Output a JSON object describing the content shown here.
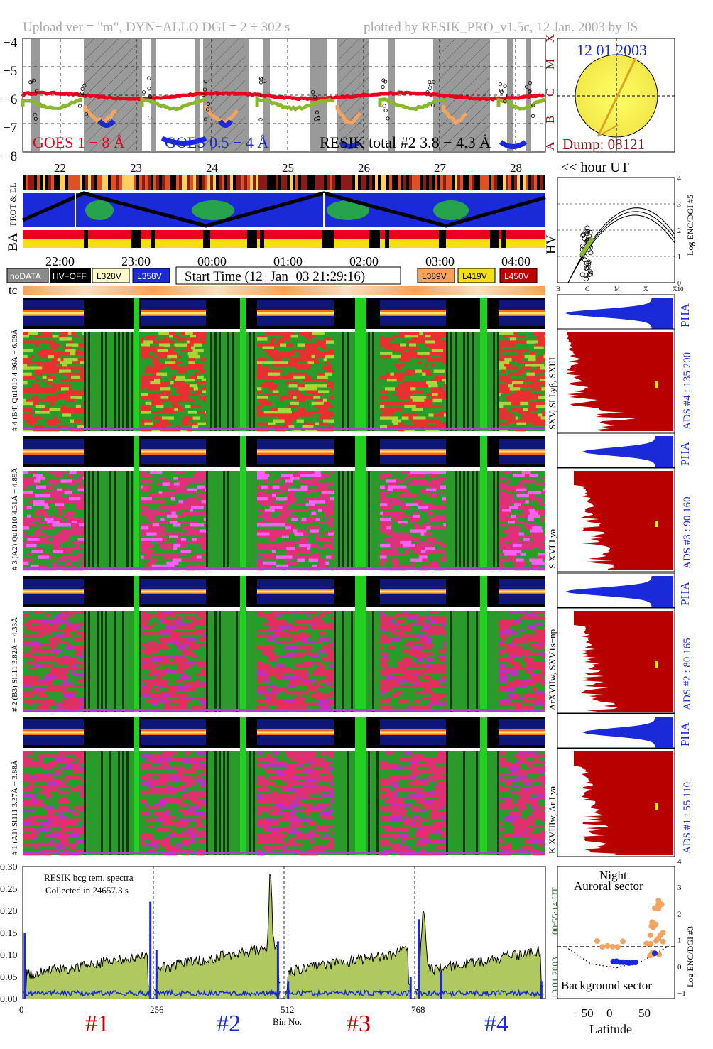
{
  "header": {
    "left": "Upload ver = \"m\", DYN−ALLO DGI =   2 ÷ 302 s",
    "right": "plotted by RESIK_PRO_v1.5c, 12 Jan. 2003 by JS"
  },
  "goes": {
    "ytick_labels": [
      "−4",
      "−5",
      "−6",
      "−7",
      "−8"
    ],
    "class_labels": [
      "X",
      "M",
      "C",
      "B",
      "A"
    ],
    "legend_goes1": "GOES 1 − 8 Å",
    "legend_goes05": "GOES 0.5 − 4 Å",
    "legend_resik": "RESIK total #2  3.8 − 4.3 Å",
    "orbit_numbers": [
      "22",
      "23",
      "24",
      "25",
      "26",
      "27",
      "28"
    ],
    "colors": {
      "goes1": "#e8001c",
      "goes05": "#1a2ad8",
      "resik_curve": "#8ab82c",
      "orange": "#f4a460"
    }
  },
  "sun_panel": {
    "date": "12 01 2003",
    "dump": "Dump: 08121",
    "hour_label": "<< hour UT"
  },
  "side_labels": {
    "prot_el": "PROT & EL",
    "ba": "BA",
    "hv": "HV"
  },
  "time_axis": {
    "ticks": [
      "22:00",
      "23:00",
      "00:00",
      "01:00",
      "02:00",
      "03:00",
      "04:00"
    ]
  },
  "legend_boxes": {
    "nodata": "noDATA",
    "hvoff": "HV−OFF",
    "l328": "L328V",
    "l358": "L358V",
    "start_time": "Start Time (12−Jan−03 21:29:16)",
    "l389": "L389V",
    "l419": "L419V",
    "l450": "L450V"
  },
  "tc_label": "tc",
  "channels": [
    {
      "label": "# 4 (B4) Qu1010 4.96Å − 6.09Å",
      "right_label": "SXV, SI Lyβ, SXIII",
      "ads": "ADS #4 :  135 200",
      "pha": "PHA"
    },
    {
      "label": "# 3 (A2) Qu1010 4.31Å − 4.89Å",
      "right_label": "S XVI Lya",
      "ads": "ADS #3 :   90 160",
      "pha": "PHA"
    },
    {
      "label": "# 2 (B3) Si111 3.82Å − 4.33Å",
      "right_label": "ArXVIIw, SXV1s−np",
      "ads": "ADS #2 :   80 165",
      "pha": "PHA"
    },
    {
      "label": "# 1 (A1) Si111 3.37Å − 3.88Å",
      "right_label": "K XVIIIw, Ar Lya",
      "ads": "ADS #1 :   55 110",
      "pha": "PHA"
    }
  ],
  "hv_panel": {
    "ytick_labels": [
      "0",
      "1",
      "2",
      "3",
      "4"
    ],
    "xtick_labels": [
      "B",
      "C",
      "M",
      "X",
      "X10"
    ],
    "ylabel": "Log ENC/DGI #5"
  },
  "bottom_spectrum": {
    "info_line1": "RESIK bcg tem. spectra",
    "info_line2": "Collected in 24657.3 s",
    "ytick_labels": [
      "0.00",
      "0.05",
      "0.10",
      "0.15",
      "0.20",
      "0.25",
      "0.30"
    ],
    "xtick_labels": [
      "0",
      "256",
      "512",
      "768"
    ],
    "xlabel": "Bin No.",
    "right_time": "00:55:14 UT",
    "right_date": "13 01 2003",
    "section_labels": [
      "#1",
      "#2",
      "#3",
      "#4"
    ]
  },
  "lat_panel": {
    "title1": "Night",
    "title2": "Auroral sector",
    "bottom_label": "Background sector",
    "xtick_labels": [
      "−50",
      "0",
      "50"
    ],
    "xlabel": "Latitude",
    "ytick_labels": [
      "−1",
      "0",
      "1",
      "2",
      "3",
      "4"
    ],
    "ylabel": "Log ENC/DGI #3"
  },
  "chart_data": [
    {
      "type": "line",
      "title": "",
      "series": [
        {
          "name": "GOES 1 − 8 Å"
        },
        {
          "name": "GOES 0.5 − 4 Å"
        },
        {
          "name": "RESIK total #2  3.8 − 4.3 Å"
        }
      ],
      "ylim": [
        -8,
        -4
      ]
    },
    {
      "type": "area",
      "title": "",
      "xlabel": "Bin No.",
      "xlim": [
        0,
        1024
      ],
      "ylim": [
        0,
        0.3
      ],
      "x_ticks": [
        0,
        256,
        512,
        768
      ]
    },
    {
      "type": "scatter",
      "title": "",
      "xlabel": "Latitude",
      "ylabel": "Log ENC/DGI #3",
      "ylim": [
        -1,
        4
      ]
    }
  ]
}
